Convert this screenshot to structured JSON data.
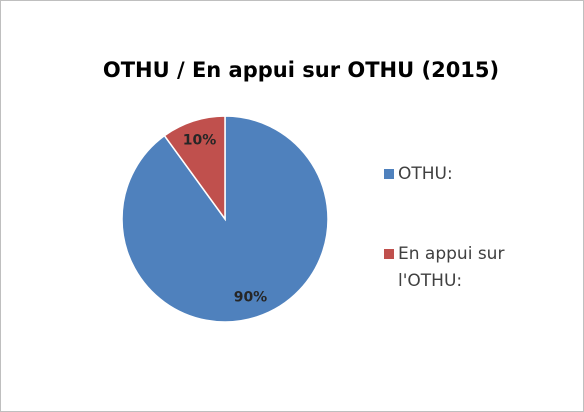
{
  "chart_data": {
    "type": "pie",
    "title": "OTHU / En appui sur OTHU (2015)",
    "categories": [
      "OTHU:",
      "En appui sur l'OTHU:"
    ],
    "values": [
      90,
      10
    ],
    "value_labels": [
      "90%",
      "10%"
    ],
    "colors": [
      "#4f81bd",
      "#c0504d"
    ],
    "legend": "right"
  }
}
